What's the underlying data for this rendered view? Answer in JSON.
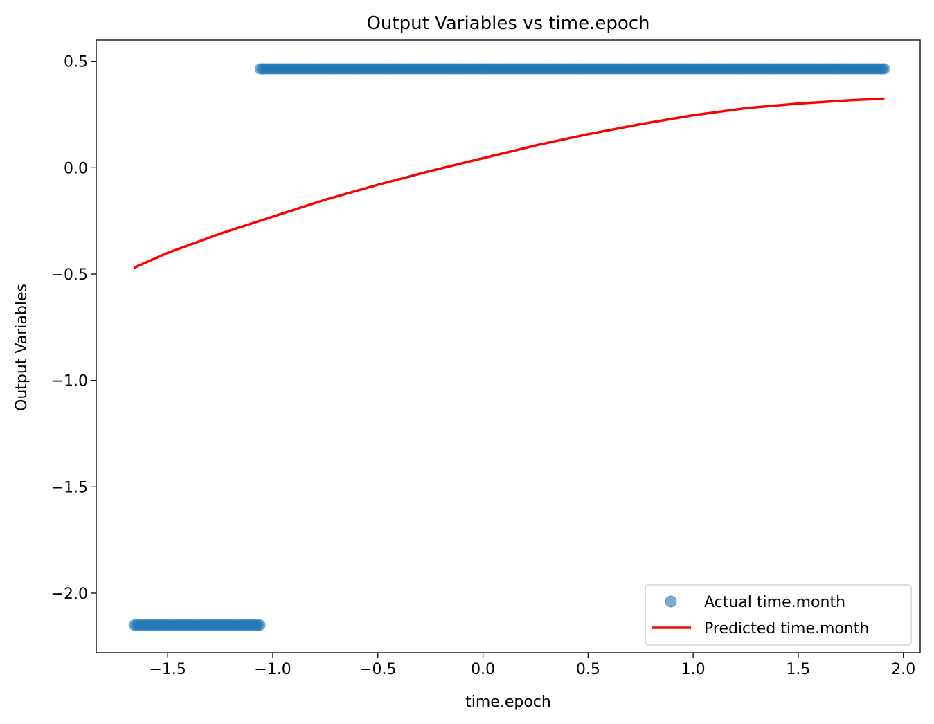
{
  "chart_data": {
    "type": "scatter",
    "title": "Output Variables vs time.epoch",
    "xlabel": "time.epoch",
    "ylabel": "Output Variables",
    "xlim": [
      -1.84,
      2.08
    ],
    "ylim": [
      -2.28,
      0.6
    ],
    "xticks": [
      -1.5,
      -1.0,
      -0.5,
      0.0,
      0.5,
      1.0,
      1.5,
      2.0
    ],
    "xtick_labels": [
      "−1.5",
      "−1.0",
      "−0.5",
      "0.0",
      "0.5",
      "1.0",
      "1.5",
      "2.0"
    ],
    "yticks": [
      0.5,
      0.0,
      -0.5,
      -1.0,
      -1.5,
      -2.0
    ],
    "ytick_labels": [
      "0.5",
      "0.0",
      "−0.5",
      "−1.0",
      "−1.5",
      "−2.0"
    ],
    "grid": false,
    "legend_position": "lower-right",
    "colors": {
      "actual": "#1f77b4",
      "predicted": "#ff0000"
    },
    "series": [
      {
        "name": "Actual time.month",
        "kind": "scatter",
        "segments": [
          {
            "x_start": -1.66,
            "x_end": -1.06,
            "y": -2.15
          },
          {
            "x_start": -1.06,
            "x_end": 1.91,
            "y": 0.465
          }
        ]
      },
      {
        "name": "Predicted time.month",
        "kind": "line",
        "x": [
          -1.66,
          -1.5,
          -1.25,
          -1.0,
          -0.75,
          -0.5,
          -0.25,
          0.0,
          0.25,
          0.5,
          0.75,
          1.0,
          1.25,
          1.5,
          1.75,
          1.91
        ],
        "y": [
          -0.47,
          -0.4,
          -0.31,
          -0.23,
          -0.15,
          -0.08,
          -0.015,
          0.045,
          0.105,
          0.158,
          0.205,
          0.247,
          0.28,
          0.302,
          0.318,
          0.325
        ]
      }
    ]
  }
}
